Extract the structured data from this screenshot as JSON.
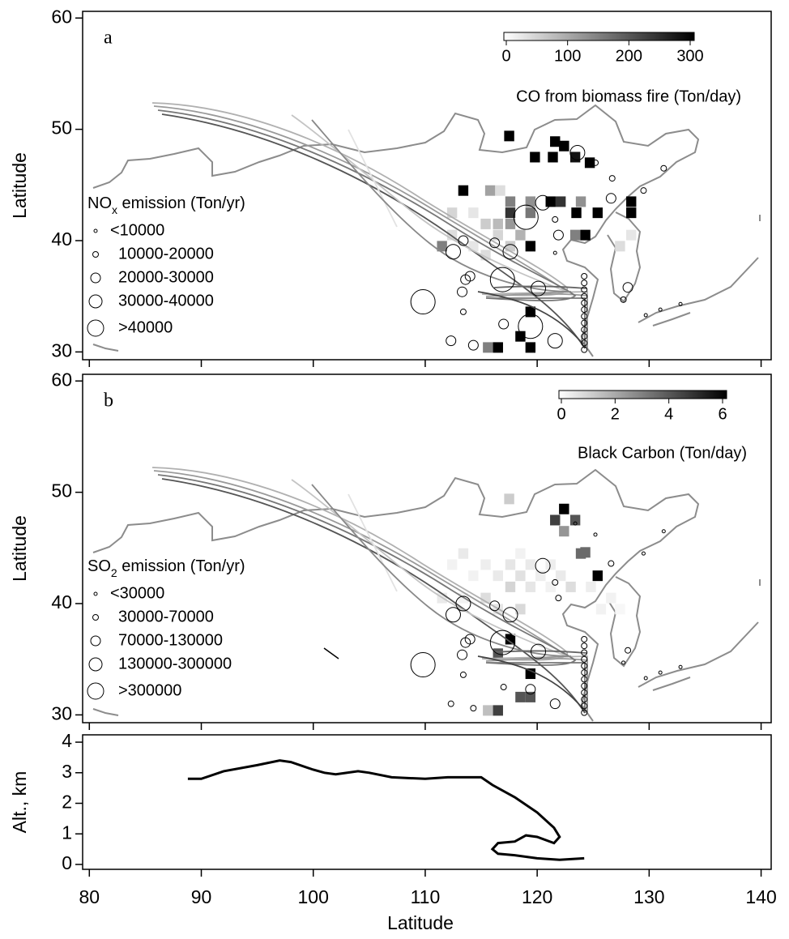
{
  "chart_data": [
    {
      "type": "map",
      "panel_label": "a",
      "ylabel": "Latitude",
      "xlim": [
        79.4,
        140.9
      ],
      "xticks": [
        80,
        90,
        100,
        110,
        120,
        130,
        140
      ],
      "ylim": [
        29.3,
        60.6
      ],
      "yticks": [
        30,
        40,
        50,
        60
      ],
      "colorbar": {
        "title": "CO from biomass fire (Ton/day)",
        "range": [
          0,
          300
        ],
        "ticks": [
          0,
          100,
          200,
          300
        ]
      },
      "legend": {
        "title": [
          "NO",
          "x",
          " emission (Ton/yr)"
        ],
        "classes": [
          "<10000",
          "10000-20000",
          "20000-30000",
          "30000-40000",
          ">40000"
        ]
      },
      "cells": {
        "lon": [
          117.5,
          121.6,
          122.4,
          119.8,
          121.4,
          123.4,
          124.7,
          113.4,
          115.8,
          116.7,
          117.6,
          119.4,
          121.2,
          122.1,
          123.9,
          125.4,
          123.5,
          128.4,
          128.4,
          112.4,
          114.3,
          117.6,
          119.4,
          111.5,
          116.5,
          119.4,
          123.4,
          124.3,
          127.4,
          128.4,
          115.4,
          119.4,
          118.5,
          119.4,
          116.5,
          115.6,
          115.4,
          116.5,
          117.6,
          118.5,
          117.6,
          114.3,
          112.4
        ],
        "lat": [
          49.4,
          48.9,
          48.5,
          47.5,
          47.5,
          47.5,
          47.0,
          44.5,
          44.5,
          44.5,
          43.5,
          43.5,
          43.5,
          43.5,
          43.5,
          42.5,
          42.5,
          43.5,
          42.5,
          42.5,
          42.5,
          42.5,
          42.5,
          39.5,
          40.5,
          39.5,
          40.5,
          40.5,
          39.5,
          40.5,
          38.7,
          33.6,
          31.4,
          30.4,
          30.4,
          30.4,
          41.5,
          41.5,
          41.5,
          40.5,
          39.5,
          39.5,
          40.5
        ],
        "values": [
          300,
          300,
          300,
          300,
          300,
          280,
          300,
          300,
          110,
          40,
          150,
          130,
          300,
          240,
          130,
          300,
          300,
          300,
          300,
          50,
          30,
          240,
          160,
          150,
          50,
          300,
          150,
          300,
          40,
          30,
          40,
          300,
          300,
          300,
          300,
          150,
          60,
          80,
          120,
          90,
          60,
          30,
          40
        ]
      },
      "sources": {
        "lon": [
          109.8,
          123.6,
          120.5,
          119.0,
          112.5,
          113.4,
          116.2,
          117.6,
          116.9,
          120.1,
          119.4,
          121.6,
          112.3,
          114.3,
          113.6,
          113.3,
          114.0,
          113.4,
          117.0,
          121.9,
          121.6,
          125.2,
          126.7,
          126.6,
          128.1,
          127.7,
          131.3,
          129.5,
          129.7,
          131.0,
          132.8,
          121.6,
          124.2,
          124.2,
          124.2,
          124.2,
          124.2,
          124.2,
          124.2,
          124.2,
          124.2,
          124.2,
          124.2,
          124.2
        ],
        "lat": [
          34.5,
          47.9,
          43.4,
          42.1,
          39.0,
          40.0,
          39.8,
          39.0,
          36.5,
          35.7,
          32.3,
          31.0,
          31.0,
          30.6,
          36.5,
          35.4,
          36.8,
          33.6,
          32.5,
          40.5,
          41.9,
          47.0,
          45.6,
          43.8,
          35.8,
          34.7,
          46.5,
          44.5,
          33.3,
          33.8,
          34.3,
          38.9,
          30.2,
          30.8,
          31.4,
          32.0,
          32.6,
          33.2,
          33.8,
          34.4,
          35.0,
          35.6,
          36.2,
          36.8
        ],
        "class": [
          4,
          3,
          3,
          4,
          3,
          2,
          2,
          3,
          4,
          3,
          4,
          3,
          2,
          2,
          2,
          2,
          2,
          1,
          2,
          2,
          1,
          1,
          1,
          2,
          2,
          1,
          1,
          1,
          0,
          0,
          0,
          0,
          1,
          1,
          1,
          1,
          1,
          1,
          1,
          1,
          1,
          1,
          1,
          1
        ]
      }
    },
    {
      "type": "map",
      "panel_label": "b",
      "ylabel": "Latitude",
      "xlim": [
        79.4,
        140.9
      ],
      "xticks": [
        80,
        90,
        100,
        110,
        120,
        130,
        140
      ],
      "ylim": [
        29.3,
        60.6
      ],
      "yticks": [
        30,
        40,
        50,
        60
      ],
      "colorbar": {
        "title": "Black Carbon (Ton/day)",
        "range": [
          0,
          6
        ],
        "ticks": [
          0,
          2,
          4,
          6
        ]
      },
      "legend": {
        "title": [
          "SO",
          "2",
          " emission (Ton/yr)"
        ],
        "classes": [
          "<30000",
          "30000-70000",
          "70000-130000",
          "130000-300000",
          ">300000"
        ]
      },
      "cells": {
        "lon": [
          117.5,
          122.4,
          121.6,
          123.4,
          122.4,
          123.9,
          125.4,
          117.6,
          116.5,
          119.4,
          118.5,
          119.4,
          116.5,
          115.6,
          124.3,
          113.4,
          118.5,
          112.4,
          115.4,
          117.6,
          119.4,
          121.2,
          114.3,
          116.5,
          118.5,
          120.3,
          122.1,
          117.6,
          119.4,
          121.2,
          123.0,
          124.8,
          111.5,
          113.4,
          115.4,
          116.5,
          118.5,
          126.6,
          125.7,
          127.4
        ],
        "lat": [
          49.4,
          48.5,
          47.5,
          47.5,
          46.5,
          44.5,
          42.5,
          36.8,
          35.5,
          33.7,
          31.6,
          31.6,
          30.4,
          30.4,
          44.6,
          44.5,
          44.5,
          43.5,
          43.5,
          43.5,
          43.5,
          43.5,
          42.5,
          42.5,
          42.5,
          42.5,
          42.5,
          41.5,
          41.5,
          41.5,
          41.5,
          41.5,
          40.5,
          40.5,
          40.5,
          39.5,
          39.5,
          40.5,
          39.5,
          39.5
        ],
        "values": [
          1.2,
          6,
          4.5,
          4,
          2.5,
          3.5,
          6,
          6,
          4,
          6,
          4,
          4,
          4.5,
          1.5,
          3.5,
          0.5,
          0.3,
          0.3,
          0.4,
          0.6,
          0.5,
          0.4,
          0.3,
          0.5,
          0.7,
          0.4,
          0.5,
          1.0,
          0.6,
          0.3,
          0.8,
          0.4,
          0.5,
          0.3,
          0.8,
          0.6,
          0.9,
          0.3,
          0.3,
          0.2
        ]
      },
      "sources": {
        "lon": [
          109.8,
          120.5,
          112.5,
          113.4,
          116.2,
          117.6,
          116.9,
          120.1,
          119.4,
          121.6,
          112.3,
          114.3,
          113.6,
          113.3,
          114.0,
          113.4,
          117.0,
          121.9,
          121.6,
          123.4,
          125.2,
          126.6,
          128.1,
          127.7,
          131.3,
          129.5,
          129.7,
          131.0,
          132.8,
          124.2,
          124.2,
          124.2,
          124.2,
          124.2,
          124.2,
          124.2,
          124.2,
          124.2,
          124.2,
          124.2,
          124.2
        ],
        "lat": [
          34.5,
          43.4,
          39.0,
          40.0,
          39.8,
          39.0,
          36.5,
          35.7,
          32.3,
          31.0,
          31.0,
          30.6,
          36.5,
          35.4,
          36.8,
          33.6,
          32.5,
          40.5,
          41.9,
          47.2,
          46.2,
          43.6,
          35.8,
          34.7,
          46.5,
          44.5,
          33.3,
          33.8,
          34.3,
          30.2,
          30.8,
          31.4,
          32.0,
          32.6,
          33.2,
          33.8,
          34.4,
          35.0,
          35.6,
          36.2,
          36.8
        ],
        "class": [
          4,
          3,
          3,
          3,
          2,
          3,
          4,
          3,
          2,
          2,
          1,
          1,
          2,
          2,
          2,
          1,
          1,
          1,
          1,
          0,
          0,
          1,
          1,
          0,
          0,
          0,
          0,
          0,
          0,
          1,
          1,
          1,
          1,
          1,
          1,
          1,
          1,
          1,
          1,
          1,
          1
        ]
      }
    },
    {
      "type": "line",
      "ylabel": "Alt., km",
      "xlabel": "Latitude",
      "color": "#000000",
      "xlim": [
        79.4,
        140.9
      ],
      "xticks": [
        80,
        90,
        100,
        110,
        120,
        130,
        140
      ],
      "ylim": [
        -0.16,
        4.24
      ],
      "yticks": [
        0,
        1,
        2,
        3,
        4
      ],
      "x": [
        88.8,
        90,
        92,
        95,
        97,
        98,
        100,
        101,
        102,
        104,
        105,
        107,
        110,
        112,
        115,
        116,
        118,
        120,
        121.5,
        122,
        121.5,
        120,
        119,
        118,
        116.5,
        116,
        116.5,
        118,
        120,
        122,
        124.2
      ],
      "values": [
        2.8,
        2.8,
        3.05,
        3.25,
        3.4,
        3.35,
        3.1,
        3.0,
        2.95,
        3.05,
        3.0,
        2.85,
        2.8,
        2.85,
        2.85,
        2.6,
        2.2,
        1.7,
        1.2,
        0.9,
        0.7,
        0.9,
        0.95,
        0.75,
        0.7,
        0.5,
        0.35,
        0.3,
        0.2,
        0.15,
        0.2
      ]
    }
  ]
}
